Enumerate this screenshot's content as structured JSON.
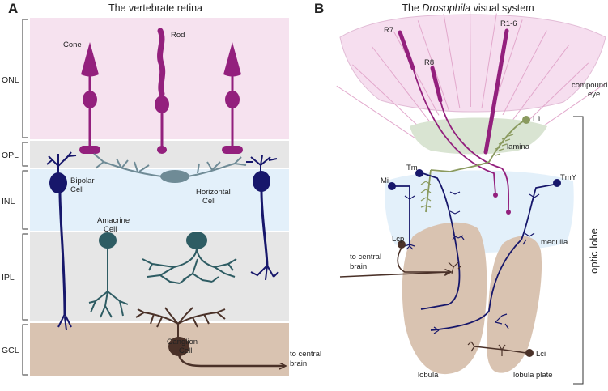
{
  "panel_a": {
    "letter": "A",
    "title": "The vertebrate retina",
    "layers": [
      "ONL",
      "OPL",
      "INL",
      "IPL",
      "GCL"
    ],
    "cells": {
      "cone": "Cone",
      "rod": "Rod",
      "bipolar": [
        "Bipolar",
        "Cell"
      ],
      "horizontal": [
        "Horizontal",
        "Cell"
      ],
      "amacrine": [
        "Amacrine",
        "Cell"
      ],
      "ganglion": [
        "Ganglion",
        "Cell"
      ]
    },
    "output": [
      "to central",
      "brain"
    ]
  },
  "panel_b": {
    "letter": "B",
    "title_pre": "The ",
    "title_em": "Drosophila",
    "title_post": " visual system",
    "photoreceptors": {
      "r7": "R7",
      "r8": "R8",
      "r16": "R1-6"
    },
    "neurons": {
      "l1": "L1",
      "mi": "Mi",
      "tm": "Tm",
      "tmy": "TmY",
      "lcp": "Lcp",
      "lci": "Lci"
    },
    "regions": {
      "compound_eye": [
        "compound",
        "eye"
      ],
      "lamina": "lamina",
      "medulla": "medulla",
      "lobula": "lobula",
      "lobula_plate": "lobula plate"
    },
    "optic_lobe": "optic lobe",
    "output": [
      "to central",
      "brain"
    ]
  },
  "colors": {
    "onl_bg": "#f6e2ef",
    "opl_bg": "#e6e6e6",
    "inl_bg": "#e3f0fa",
    "ipl_bg": "#e6e6e6",
    "gcl_bg": "#d9c3b1",
    "photoreceptor": "#93207d",
    "bipolar": "#17176b",
    "horizontal": "#6f8b96",
    "amacrine": "#2e5c63",
    "ganglion": "#4a3128",
    "lamina_neuron": "#8a9a5f",
    "eye_bg": "#f6deef",
    "lamina_bg": "#d9e4d2",
    "medulla_bg": "#e3f0fa",
    "lobula_bg": "#d9c3b1"
  }
}
